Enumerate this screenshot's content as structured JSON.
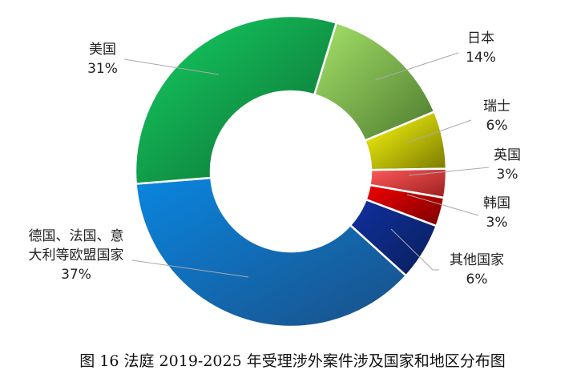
{
  "chart_data": {
    "type": "pie",
    "donut": true,
    "categories": [
      "日本",
      "瑞士",
      "英国",
      "韩国",
      "其他国家",
      "德国、法国、意大利等欧盟国家",
      "美国"
    ],
    "values": [
      14,
      6,
      3,
      3,
      6,
      37,
      31
    ],
    "value_labels": [
      "14%",
      "6%",
      "3%",
      "3%",
      "6%",
      "37%",
      "31%"
    ],
    "label_lines": [
      [
        "日本"
      ],
      [
        "瑞士"
      ],
      [
        "英国"
      ],
      [
        "韩国"
      ],
      [
        "其他国家"
      ],
      [
        "德国、法国、意",
        "大利等欧盟国家"
      ],
      [
        "美国"
      ]
    ],
    "colors": [
      [
        "#a6e36a",
        "#4d7a2e"
      ],
      [
        "#ffff10",
        "#7a7a00"
      ],
      [
        "#ff5a5a",
        "#9a1e1e"
      ],
      [
        "#f00000",
        "#7a0000"
      ],
      [
        "#1030a0",
        "#0a1f5a"
      ],
      [
        "#0a86e0",
        "#1a4f86"
      ],
      [
        "#14d064",
        "#0e6a30"
      ]
    ],
    "title": "图 16  法庭 2019-2025 年受理涉外案件涉及国家和地区分布图"
  }
}
